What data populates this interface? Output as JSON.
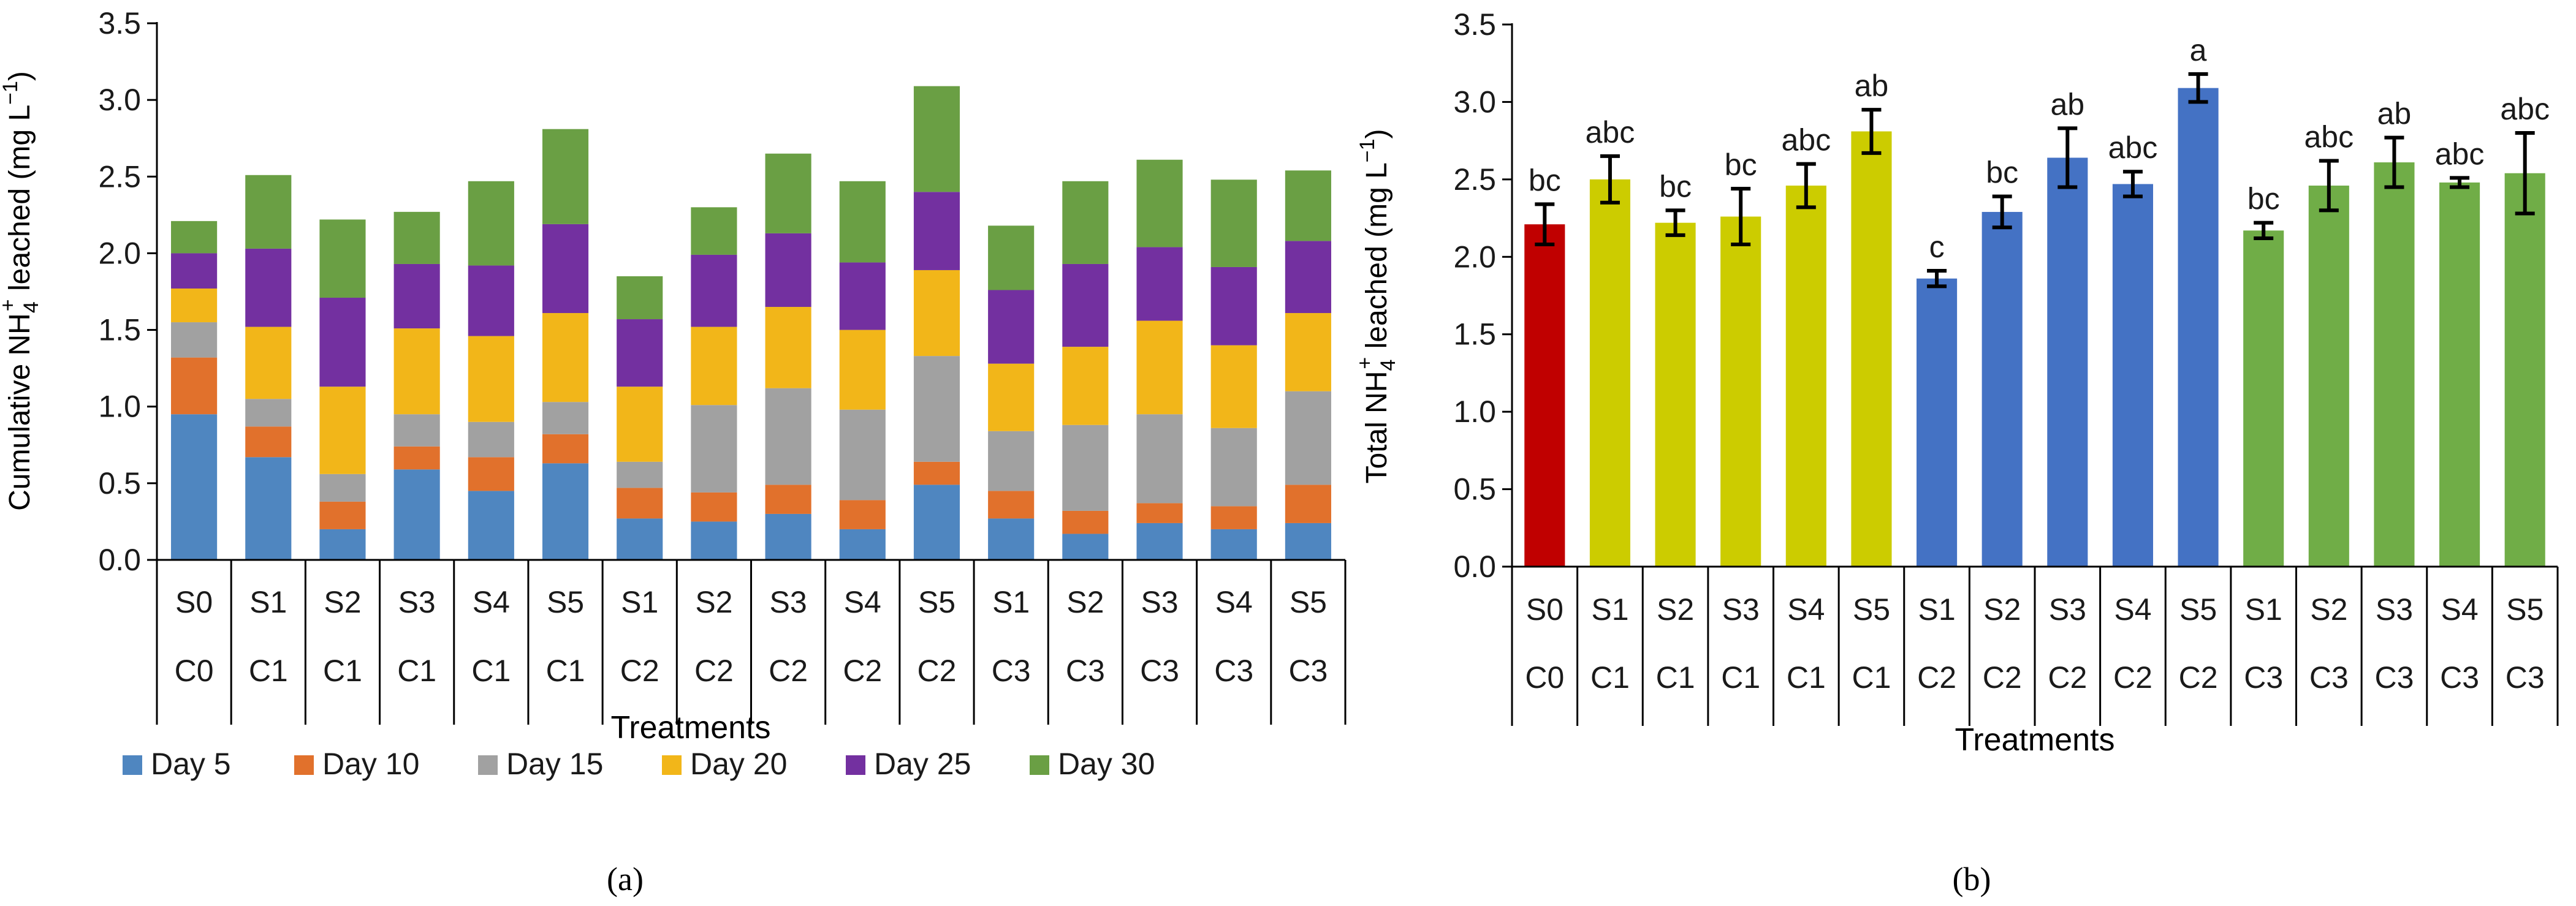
{
  "chart_data": [
    {
      "type": "bar",
      "stacked": true,
      "panel": "(a)",
      "title": "",
      "xlabel": "Treatments",
      "ylabel_parts": [
        "Cumulative NH",
        "4",
        "+",
        " leached (mg L",
        "−1",
        ")"
      ],
      "ylim": [
        0,
        3.5
      ],
      "yticks": [
        "0.0",
        "0.5",
        "1.0",
        "1.5",
        "2.0",
        "2.5",
        "3.0",
        "3.5"
      ],
      "categories": [
        "S0",
        "S1",
        "S2",
        "S3",
        "S4",
        "S5",
        "S1",
        "S2",
        "S3",
        "S4",
        "S5",
        "S1",
        "S2",
        "S3",
        "S4",
        "S5"
      ],
      "groups": [
        "C0",
        "C1",
        "C1",
        "C1",
        "C1",
        "C1",
        "C2",
        "C2",
        "C2",
        "C2",
        "C2",
        "C3",
        "C3",
        "C3",
        "C3",
        "C3"
      ],
      "legend_position": "bottom",
      "series": [
        {
          "name": "Day 5",
          "color": "#4f86c0",
          "values": [
            0.95,
            0.67,
            0.2,
            0.59,
            0.45,
            0.63,
            0.27,
            0.25,
            0.3,
            0.2,
            0.49,
            0.27,
            0.17,
            0.24,
            0.2,
            0.24
          ]
        },
        {
          "name": "Day 10",
          "color": "#e1712c",
          "values": [
            0.37,
            0.2,
            0.18,
            0.15,
            0.22,
            0.19,
            0.2,
            0.19,
            0.19,
            0.19,
            0.15,
            0.18,
            0.15,
            0.13,
            0.15,
            0.25
          ]
        },
        {
          "name": "Day 15",
          "color": "#a1a1a1",
          "values": [
            0.23,
            0.18,
            0.18,
            0.21,
            0.23,
            0.21,
            0.17,
            0.57,
            0.63,
            0.59,
            0.69,
            0.39,
            0.56,
            0.58,
            0.51,
            0.61
          ]
        },
        {
          "name": "Day 20",
          "color": "#f2b619",
          "values": [
            0.22,
            0.47,
            0.57,
            0.56,
            0.56,
            0.58,
            0.49,
            0.51,
            0.53,
            0.52,
            0.56,
            0.44,
            0.51,
            0.61,
            0.54,
            0.51
          ]
        },
        {
          "name": "Day 25",
          "color": "#7330a0",
          "values": [
            0.23,
            0.51,
            0.58,
            0.42,
            0.46,
            0.58,
            0.44,
            0.47,
            0.48,
            0.44,
            0.51,
            0.48,
            0.54,
            0.48,
            0.51,
            0.47
          ]
        },
        {
          "name": "Day 30",
          "color": "#6a9f44",
          "values": [
            0.21,
            0.48,
            0.51,
            0.34,
            0.55,
            0.62,
            0.28,
            0.31,
            0.52,
            0.53,
            0.69,
            0.42,
            0.54,
            0.57,
            0.57,
            0.46
          ]
        }
      ]
    },
    {
      "type": "bar",
      "panel": "(b)",
      "title": "",
      "xlabel": "Treatments",
      "ylabel_parts": [
        "Total NH",
        "4",
        "+",
        " leached (mg L",
        "−1",
        ")"
      ],
      "ylim": [
        0,
        3.5
      ],
      "yticks": [
        "0.0",
        "0.5",
        "1.0",
        "1.5",
        "2.0",
        "2.5",
        "3.0",
        "3.5"
      ],
      "categories": [
        "S0",
        "S1",
        "S2",
        "S3",
        "S4",
        "S5",
        "S1",
        "S2",
        "S3",
        "S4",
        "S5",
        "S1",
        "S2",
        "S3",
        "S4",
        "S5"
      ],
      "groups": [
        "C0",
        "C1",
        "C1",
        "C1",
        "C1",
        "C1",
        "C2",
        "C2",
        "C2",
        "C2",
        "C2",
        "C3",
        "C3",
        "C3",
        "C3",
        "C3"
      ],
      "values": [
        2.21,
        2.5,
        2.22,
        2.26,
        2.46,
        2.81,
        1.86,
        2.29,
        2.64,
        2.47,
        3.09,
        2.17,
        2.46,
        2.61,
        2.48,
        2.54
      ],
      "errors": [
        0.13,
        0.15,
        0.08,
        0.18,
        0.14,
        0.14,
        0.05,
        0.1,
        0.19,
        0.08,
        0.09,
        0.05,
        0.16,
        0.16,
        0.03,
        0.26
      ],
      "letters": [
        "bc",
        "abc",
        "bc",
        "bc",
        "abc",
        "ab",
        "c",
        "bc",
        "ab",
        "abc",
        "a",
        "bc",
        "abc",
        "ab",
        "abc",
        "abc"
      ],
      "colors": [
        "#c00000",
        "#cccc00",
        "#cccc00",
        "#cccc00",
        "#cccc00",
        "#cccc00",
        "#4472c4",
        "#4472c4",
        "#4472c4",
        "#4472c4",
        "#4472c4",
        "#70ad47",
        "#70ad47",
        "#70ad47",
        "#70ad47",
        "#70ad47"
      ]
    }
  ]
}
